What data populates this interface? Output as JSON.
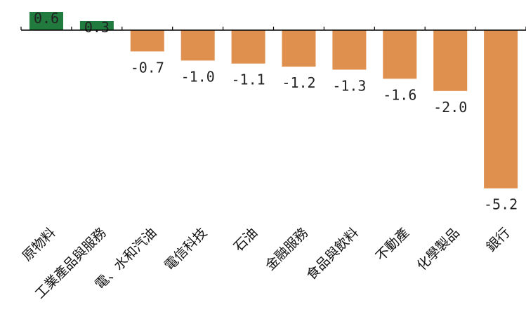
{
  "chart_data": {
    "type": "bar",
    "categories": [
      "原物料",
      "工業產品與服務",
      "電、水和汽油",
      "電信科技",
      "石油",
      "金融服務",
      "食品與飲料",
      "不動產",
      "化學製品",
      "銀行"
    ],
    "values": [
      0.6,
      0.3,
      -0.7,
      -1.0,
      -1.1,
      -1.2,
      -1.3,
      -1.6,
      -2.0,
      -5.2
    ],
    "value_labels": [
      "0.6",
      "0.3",
      "-0.7",
      "-1.0",
      "-1.1",
      "-1.2",
      "-1.3",
      "-1.6",
      "-2.0",
      "-5.2"
    ],
    "title": "",
    "xlabel": "",
    "ylabel": "",
    "ylim": [
      -5.2,
      0.6
    ],
    "grid": false,
    "colors": {
      "positive": "#217a3e",
      "negative": "#e0904e",
      "axis": "#000000",
      "label": "#222222"
    }
  }
}
